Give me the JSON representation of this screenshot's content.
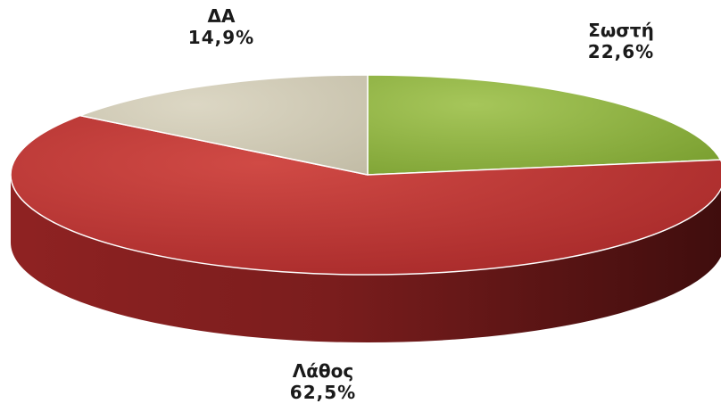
{
  "chart_data": {
    "type": "pie",
    "style": "3d",
    "title": "",
    "slices": [
      {
        "label": "Σωστή",
        "value": 22.6,
        "value_label": "22,6%",
        "color": "#8db13a"
      },
      {
        "label": "Λάθος",
        "value": 62.5,
        "value_label": "62,5%",
        "color": "#b83232"
      },
      {
        "label": "ΔΑ",
        "value": 14.9,
        "value_label": "14,9%",
        "color": "#cec8b2"
      }
    ]
  }
}
